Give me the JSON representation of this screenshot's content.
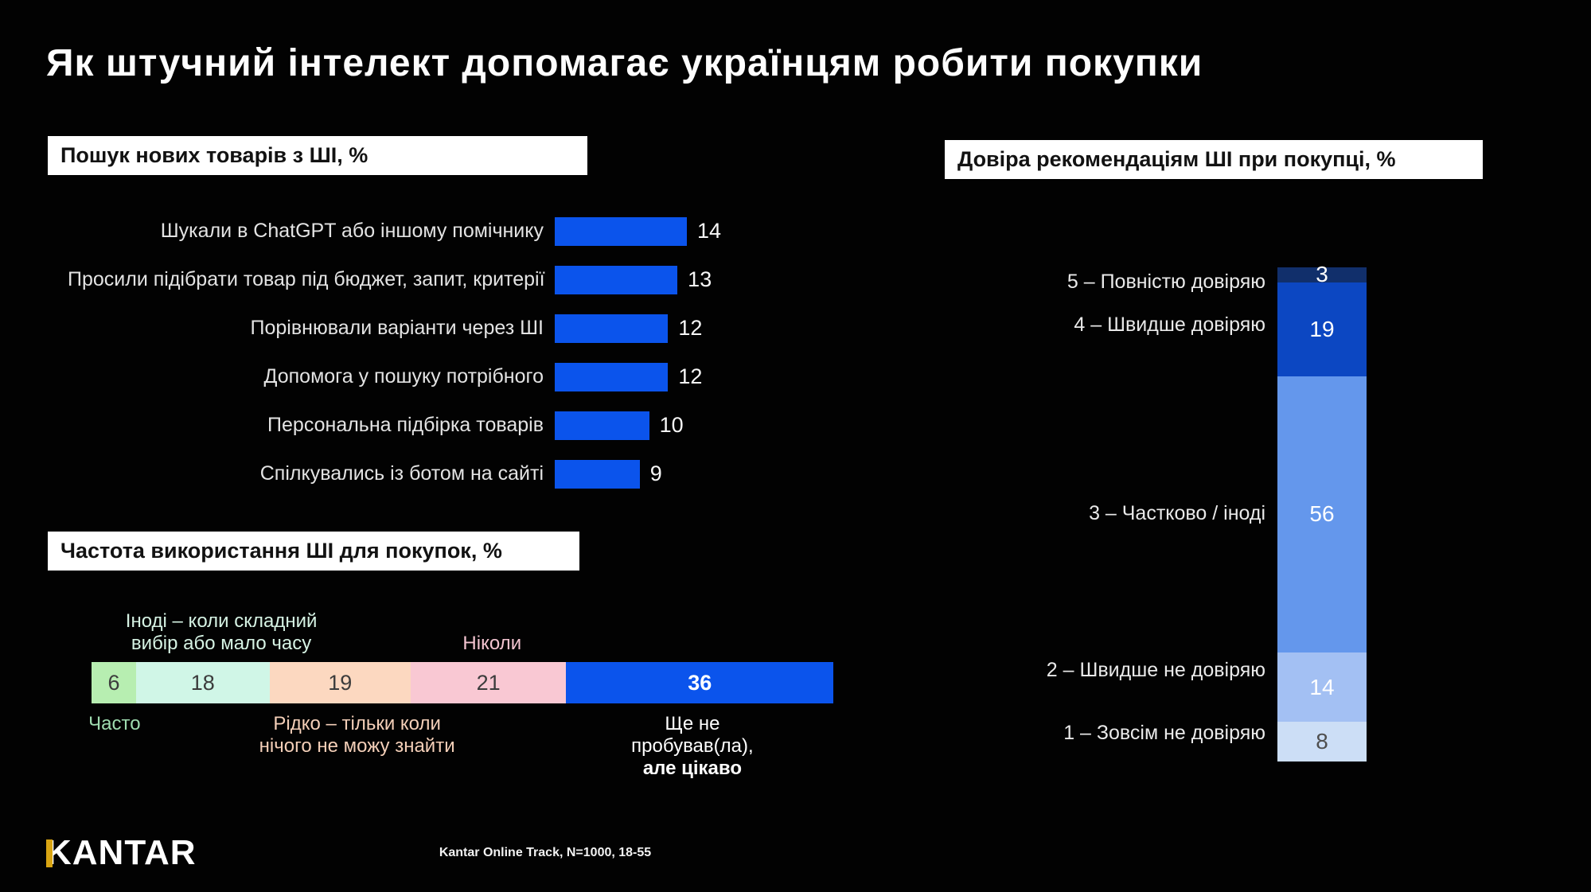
{
  "title": "Як штучний інтелект допомагає українцям робити покупки",
  "chart_data": [
    {
      "id": "search",
      "type": "bar",
      "orientation": "horizontal",
      "title": "Пошук нових товарів з ШІ, %",
      "categories": [
        "Шукали в ChatGPT або іншому помічнику",
        "Просили підібрати товар під бюджет, запит, критерії",
        "Порівнювали варіанти через ШІ",
        "Допомога у пошуку потрібного",
        "Персональна підбірка товарів",
        "Спілкувались із ботом на сайті"
      ],
      "values": [
        14,
        13,
        12,
        12,
        10,
        9
      ],
      "bar_color": "#0b54ec",
      "value_label_color": "#f7f7f7",
      "xlim": [
        0,
        14
      ],
      "grid": false
    },
    {
      "id": "frequency",
      "type": "bar",
      "subtype": "stacked-horizontal-100",
      "title": "Частота використання ШІ для покупок, %",
      "total": 100,
      "segments": [
        {
          "label": "Часто",
          "label_position": "below",
          "value": 6,
          "color": "#b7eeb1",
          "value_color": "#3c3c3c",
          "label_color": "#9fdcb0"
        },
        {
          "label": "Іноді – коли складний\nвибір або мало часу",
          "label_position": "above",
          "value": 18,
          "color": "#d0f6e7",
          "value_color": "#3c3c3c",
          "label_color": "#d6f3e4"
        },
        {
          "label": "Рідко – тільки коли\nнічого не можу знайти",
          "label_position": "below",
          "value": 19,
          "color": "#fcd8c0",
          "value_color": "#3c3c3c",
          "label_color": "#f4cfb8"
        },
        {
          "label": "Ніколи",
          "label_position": "above",
          "value": 21,
          "color": "#f9c8d3",
          "value_color": "#3c3c3c",
          "label_color": "#f3c4d0"
        },
        {
          "label": "Ще не пробував(ла),",
          "label2": "але цікаво",
          "label_position": "below",
          "value": 36,
          "color": "#0b54ec",
          "value_color": "#ffffff",
          "value_bold": true,
          "label_color": "#ffffff"
        }
      ]
    },
    {
      "id": "trust",
      "type": "bar",
      "subtype": "stacked-vertical-100",
      "title": "Довіра рекомендаціям ШІ при покупці, %",
      "total": 100,
      "segments": [
        {
          "label": "5 – Повністю довіряю",
          "value": 3,
          "color": "#112f6b",
          "value_color": "#ffffff"
        },
        {
          "label": "4 – Швидше довіряю",
          "value": 19,
          "color": "#0c47c2",
          "value_color": "#ffffff"
        },
        {
          "label": "3 – Частково / іноді",
          "value": 56,
          "color": "#6497ec",
          "value_color": "#ffffff"
        },
        {
          "label": "2 – Швидше не довіряю",
          "value": 14,
          "color": "#a3c0f3",
          "value_color": "#ffffff"
        },
        {
          "label": "1 – Зовсім не довіряю",
          "value": 8,
          "color": "#ccdef6",
          "value_color": "#4f4f4f"
        }
      ]
    }
  ],
  "footer": {
    "logo_text": "KANTAR",
    "logo_accent_color": "#d9a513",
    "source": "Kantar Online Track, N=1000, 18-55"
  }
}
